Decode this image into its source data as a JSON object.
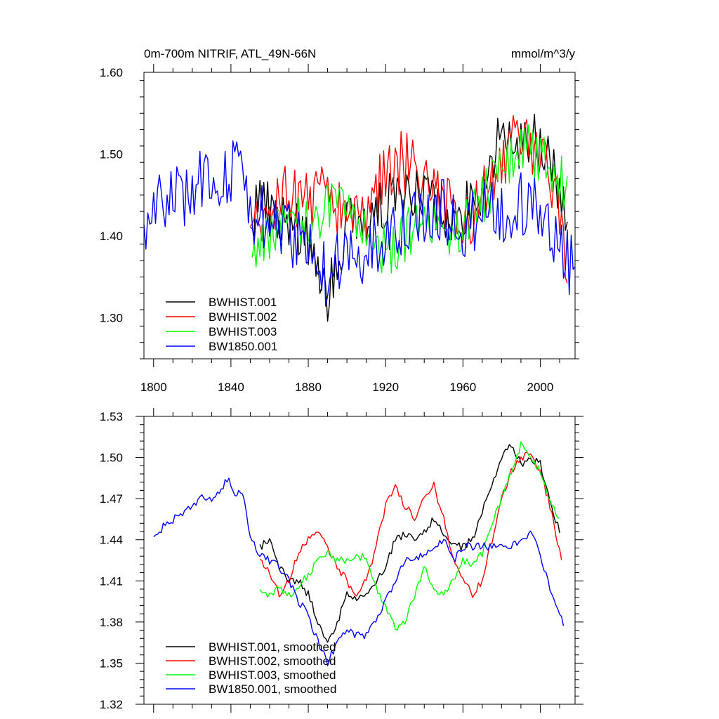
{
  "chart_data": [
    {
      "type": "line",
      "title": "0m-700m NITRIF, ATL_49N-66N",
      "units": "mmol/m^3/y",
      "xlim": [
        1795,
        2018
      ],
      "ylim": [
        1.25,
        1.6
      ],
      "xticks": [
        1800,
        1840,
        1880,
        1920,
        1960,
        2000
      ],
      "x_tick_labels": [
        "1800",
        "1840",
        "1880",
        "1920",
        "1960",
        "2000"
      ],
      "yticks": [
        1.3,
        1.4,
        1.5,
        1.6
      ],
      "y_tick_labels": [
        "1.30",
        "1.40",
        "1.50",
        "1.60"
      ],
      "legend_position": "bottom-left",
      "series": [
        {
          "name": "BWHIST.001",
          "color": "#000000",
          "x_start": 1850,
          "x_end": 2014,
          "anchors": [
            [
              1850,
              1.43
            ],
            [
              1860,
              1.44
            ],
            [
              1870,
              1.42
            ],
            [
              1880,
              1.39
            ],
            [
              1890,
              1.33
            ],
            [
              1900,
              1.41
            ],
            [
              1910,
              1.42
            ],
            [
              1920,
              1.44
            ],
            [
              1930,
              1.46
            ],
            [
              1940,
              1.45
            ],
            [
              1950,
              1.43
            ],
            [
              1960,
              1.43
            ],
            [
              1970,
              1.46
            ],
            [
              1980,
              1.53
            ],
            [
              1990,
              1.51
            ],
            [
              2000,
              1.52
            ],
            [
              2010,
              1.46
            ],
            [
              2014,
              1.41
            ]
          ],
          "amplitude": 0.035
        },
        {
          "name": "BWHIST.002",
          "color": "#ff0000",
          "x_start": 1850,
          "x_end": 2014,
          "anchors": [
            [
              1850,
              1.39
            ],
            [
              1860,
              1.43
            ],
            [
              1870,
              1.45
            ],
            [
              1880,
              1.44
            ],
            [
              1890,
              1.46
            ],
            [
              1900,
              1.42
            ],
            [
              1910,
              1.43
            ],
            [
              1920,
              1.48
            ],
            [
              1930,
              1.49
            ],
            [
              1940,
              1.46
            ],
            [
              1950,
              1.45
            ],
            [
              1960,
              1.4
            ],
            [
              1970,
              1.45
            ],
            [
              1980,
              1.5
            ],
            [
              1990,
              1.52
            ],
            [
              2000,
              1.5
            ],
            [
              2010,
              1.44
            ],
            [
              2014,
              1.35
            ]
          ],
          "amplitude": 0.04
        },
        {
          "name": "BWHIST.003",
          "color": "#00ff00",
          "x_start": 1851,
          "x_end": 2014,
          "anchors": [
            [
              1851,
              1.39
            ],
            [
              1860,
              1.4
            ],
            [
              1870,
              1.41
            ],
            [
              1880,
              1.42
            ],
            [
              1890,
              1.43
            ],
            [
              1900,
              1.43
            ],
            [
              1910,
              1.41
            ],
            [
              1920,
              1.38
            ],
            [
              1930,
              1.4
            ],
            [
              1940,
              1.41
            ],
            [
              1950,
              1.4
            ],
            [
              1960,
              1.41
            ],
            [
              1970,
              1.44
            ],
            [
              1980,
              1.48
            ],
            [
              1990,
              1.51
            ],
            [
              2000,
              1.5
            ],
            [
              2010,
              1.47
            ],
            [
              2014,
              1.45
            ]
          ],
          "amplitude": 0.035
        },
        {
          "name": "BW1850.001",
          "color": "#0000ff",
          "x_start": 1795,
          "x_end": 2018,
          "anchors": [
            [
              1795,
              1.42
            ],
            [
              1805,
              1.44
            ],
            [
              1815,
              1.45
            ],
            [
              1825,
              1.47
            ],
            [
              1835,
              1.47
            ],
            [
              1843,
              1.49
            ],
            [
              1850,
              1.43
            ],
            [
              1860,
              1.42
            ],
            [
              1870,
              1.4
            ],
            [
              1880,
              1.39
            ],
            [
              1890,
              1.35
            ],
            [
              1900,
              1.38
            ],
            [
              1910,
              1.38
            ],
            [
              1920,
              1.4
            ],
            [
              1930,
              1.41
            ],
            [
              1940,
              1.42
            ],
            [
              1950,
              1.43
            ],
            [
              1960,
              1.41
            ],
            [
              1970,
              1.43
            ],
            [
              1980,
              1.43
            ],
            [
              1990,
              1.44
            ],
            [
              2000,
              1.44
            ],
            [
              2010,
              1.38
            ],
            [
              2018,
              1.36
            ]
          ],
          "amplitude": 0.04
        }
      ]
    },
    {
      "type": "line",
      "title": "",
      "xlim": [
        1795,
        2018
      ],
      "ylim": [
        1.32,
        1.53
      ],
      "xticks": [
        1800,
        1840,
        1880,
        1920,
        1960,
        2000
      ],
      "yticks": [
        1.32,
        1.35,
        1.38,
        1.41,
        1.44,
        1.47,
        1.5,
        1.53
      ],
      "y_tick_labels": [
        "1.32",
        "1.35",
        "1.38",
        "1.41",
        "1.44",
        "1.47",
        "1.50",
        "1.53"
      ],
      "legend_position": "bottom-left",
      "series": [
        {
          "name": "BWHIST.001, smoothed",
          "color": "#000000",
          "x_start": 1855,
          "x_end": 2010,
          "anchors": [
            [
              1855,
              1.435
            ],
            [
              1860,
              1.44
            ],
            [
              1865,
              1.42
            ],
            [
              1870,
              1.41
            ],
            [
              1875,
              1.41
            ],
            [
              1880,
              1.4
            ],
            [
              1885,
              1.38
            ],
            [
              1890,
              1.365
            ],
            [
              1895,
              1.38
            ],
            [
              1900,
              1.4
            ],
            [
              1905,
              1.395
            ],
            [
              1910,
              1.4
            ],
            [
              1915,
              1.41
            ],
            [
              1920,
              1.42
            ],
            [
              1925,
              1.44
            ],
            [
              1930,
              1.445
            ],
            [
              1935,
              1.44
            ],
            [
              1940,
              1.445
            ],
            [
              1945,
              1.455
            ],
            [
              1950,
              1.445
            ],
            [
              1955,
              1.435
            ],
            [
              1960,
              1.435
            ],
            [
              1965,
              1.44
            ],
            [
              1970,
              1.46
            ],
            [
              1975,
              1.48
            ],
            [
              1980,
              1.5
            ],
            [
              1985,
              1.51
            ],
            [
              1990,
              1.495
            ],
            [
              1995,
              1.5
            ],
            [
              2000,
              1.495
            ],
            [
              2005,
              1.47
            ],
            [
              2010,
              1.445
            ]
          ],
          "amplitude": 0.003
        },
        {
          "name": "BWHIST.002, smoothed",
          "color": "#ff0000",
          "x_start": 1855,
          "x_end": 2011,
          "anchors": [
            [
              1855,
              1.425
            ],
            [
              1860,
              1.415
            ],
            [
              1865,
              1.4
            ],
            [
              1870,
              1.41
            ],
            [
              1875,
              1.43
            ],
            [
              1880,
              1.44
            ],
            [
              1885,
              1.445
            ],
            [
              1890,
              1.435
            ],
            [
              1895,
              1.42
            ],
            [
              1900,
              1.41
            ],
            [
              1905,
              1.4
            ],
            [
              1910,
              1.41
            ],
            [
              1915,
              1.435
            ],
            [
              1920,
              1.465
            ],
            [
              1925,
              1.48
            ],
            [
              1930,
              1.465
            ],
            [
              1935,
              1.455
            ],
            [
              1940,
              1.47
            ],
            [
              1945,
              1.48
            ],
            [
              1950,
              1.455
            ],
            [
              1955,
              1.425
            ],
            [
              1960,
              1.41
            ],
            [
              1965,
              1.4
            ],
            [
              1970,
              1.41
            ],
            [
              1975,
              1.44
            ],
            [
              1980,
              1.47
            ],
            [
              1985,
              1.49
            ],
            [
              1990,
              1.5
            ],
            [
              1995,
              1.505
            ],
            [
              2000,
              1.49
            ],
            [
              2005,
              1.465
            ],
            [
              2011,
              1.425
            ]
          ],
          "amplitude": 0.003
        },
        {
          "name": "BWHIST.003, smoothed",
          "color": "#00ff00",
          "x_start": 1855,
          "x_end": 2010,
          "anchors": [
            [
              1855,
              1.405
            ],
            [
              1860,
              1.4
            ],
            [
              1865,
              1.405
            ],
            [
              1870,
              1.4
            ],
            [
              1875,
              1.405
            ],
            [
              1880,
              1.415
            ],
            [
              1885,
              1.425
            ],
            [
              1890,
              1.43
            ],
            [
              1895,
              1.425
            ],
            [
              1900,
              1.425
            ],
            [
              1905,
              1.43
            ],
            [
              1910,
              1.425
            ],
            [
              1915,
              1.405
            ],
            [
              1920,
              1.39
            ],
            [
              1925,
              1.375
            ],
            [
              1930,
              1.38
            ],
            [
              1935,
              1.4
            ],
            [
              1940,
              1.42
            ],
            [
              1945,
              1.405
            ],
            [
              1950,
              1.4
            ],
            [
              1955,
              1.41
            ],
            [
              1960,
              1.425
            ],
            [
              1965,
              1.42
            ],
            [
              1970,
              1.43
            ],
            [
              1975,
              1.45
            ],
            [
              1980,
              1.47
            ],
            [
              1985,
              1.49
            ],
            [
              1990,
              1.51
            ],
            [
              1995,
              1.5
            ],
            [
              2000,
              1.49
            ],
            [
              2005,
              1.47
            ],
            [
              2010,
              1.455
            ]
          ],
          "amplitude": 0.003
        },
        {
          "name": "BW1850.001, smoothed",
          "color": "#0000ff",
          "x_start": 1800,
          "x_end": 2012,
          "anchors": [
            [
              1800,
              1.44
            ],
            [
              1805,
              1.45
            ],
            [
              1810,
              1.455
            ],
            [
              1815,
              1.46
            ],
            [
              1820,
              1.465
            ],
            [
              1825,
              1.47
            ],
            [
              1830,
              1.47
            ],
            [
              1835,
              1.475
            ],
            [
              1838,
              1.485
            ],
            [
              1842,
              1.475
            ],
            [
              1847,
              1.47
            ],
            [
              1850,
              1.44
            ],
            [
              1855,
              1.43
            ],
            [
              1860,
              1.425
            ],
            [
              1865,
              1.42
            ],
            [
              1870,
              1.41
            ],
            [
              1875,
              1.395
            ],
            [
              1880,
              1.385
            ],
            [
              1885,
              1.365
            ],
            [
              1890,
              1.35
            ],
            [
              1895,
              1.365
            ],
            [
              1900,
              1.375
            ],
            [
              1905,
              1.37
            ],
            [
              1910,
              1.37
            ],
            [
              1915,
              1.38
            ],
            [
              1920,
              1.395
            ],
            [
              1925,
              1.41
            ],
            [
              1930,
              1.425
            ],
            [
              1935,
              1.425
            ],
            [
              1940,
              1.43
            ],
            [
              1945,
              1.435
            ],
            [
              1950,
              1.44
            ],
            [
              1955,
              1.425
            ],
            [
              1960,
              1.435
            ],
            [
              1965,
              1.435
            ],
            [
              1970,
              1.435
            ],
            [
              1975,
              1.435
            ],
            [
              1980,
              1.435
            ],
            [
              1985,
              1.435
            ],
            [
              1990,
              1.44
            ],
            [
              1995,
              1.445
            ],
            [
              2000,
              1.43
            ],
            [
              2005,
              1.405
            ],
            [
              2010,
              1.385
            ],
            [
              2012,
              1.38
            ]
          ],
          "amplitude": 0.003
        }
      ]
    }
  ]
}
